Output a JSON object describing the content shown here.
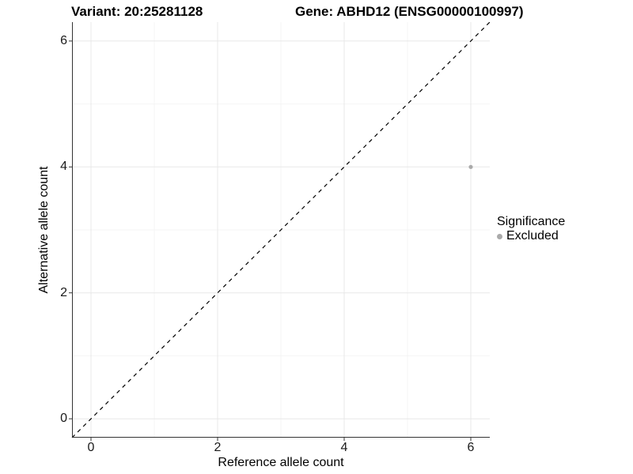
{
  "title": {
    "left": "Variant: 20:25281128",
    "right": "Gene: ABHD12 (ENSG00000100997)"
  },
  "chart_data": {
    "type": "scatter",
    "xlabel": "Reference allele count",
    "ylabel": "Alternative allele count",
    "xlim": [
      -0.3,
      6.3
    ],
    "ylim": [
      -0.3,
      6.3
    ],
    "x_ticks": [
      0,
      2,
      4,
      6
    ],
    "y_ticks": [
      0,
      2,
      4,
      6
    ],
    "x_minor_ticks": [
      1,
      3,
      5
    ],
    "y_minor_ticks": [
      1,
      3,
      5
    ],
    "grid": true,
    "reference_line": {
      "type": "identity",
      "style": "dashed",
      "color": "#000000"
    },
    "series": [
      {
        "name": "Excluded",
        "color": "#aaaaaa",
        "points": [
          {
            "x": 6,
            "y": 4
          }
        ]
      }
    ],
    "legend": {
      "title": "Significance",
      "position": "right",
      "entries": [
        {
          "label": "Excluded",
          "color": "#aaaaaa"
        }
      ]
    }
  },
  "colors": {
    "axis_line": "#333333",
    "tick_mark": "#333333",
    "major_grid": "#e8e8e8",
    "minor_grid": "#f4f4f4",
    "background": "#ffffff"
  }
}
